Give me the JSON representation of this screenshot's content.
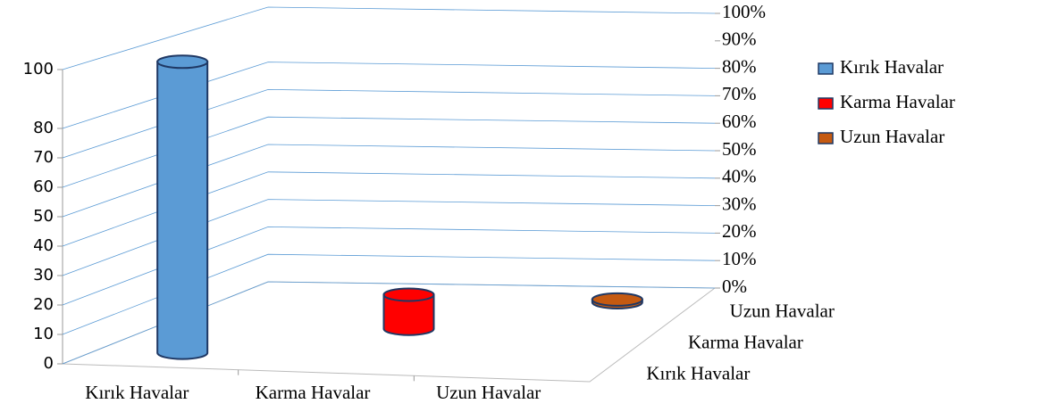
{
  "chart_data": {
    "type": "bar3d",
    "categories": [
      "Kırık Havalar",
      "Karma Havalar",
      "Uzun Havalar"
    ],
    "depth_categories": [
      "Kırık Havalar",
      "Karma Havalar",
      "Uzun Havalar"
    ],
    "series": [
      {
        "name": "Kırık Havalar",
        "color": "#5b9bd5",
        "values": [
          100,
          null,
          null
        ]
      },
      {
        "name": "Karma Havalar",
        "color": "#ff0000",
        "values": [
          null,
          12,
          null
        ]
      },
      {
        "name": "Uzun Havalar",
        "color": "#c55a11",
        "values": [
          null,
          null,
          1
        ]
      }
    ],
    "ylim": [
      0,
      100
    ],
    "yticks": [
      0,
      10,
      20,
      30,
      40,
      50,
      60,
      70,
      80,
      100
    ],
    "y2lim": [
      0,
      100
    ],
    "y2ticks": [
      {
        "value": 0,
        "label": "0%"
      },
      {
        "value": 10,
        "label": "10%"
      },
      {
        "value": 20,
        "label": "20%"
      },
      {
        "value": 30,
        "label": "30%"
      },
      {
        "value": 40,
        "label": "40%"
      },
      {
        "value": 50,
        "label": "50%"
      },
      {
        "value": 60,
        "label": "60%"
      },
      {
        "value": 70,
        "label": "70%"
      },
      {
        "value": 80,
        "label": "80%"
      },
      {
        "value": 90,
        "label": "90%"
      },
      {
        "value": 100,
        "label": "100%"
      }
    ],
    "grid": true,
    "legend": "right"
  }
}
